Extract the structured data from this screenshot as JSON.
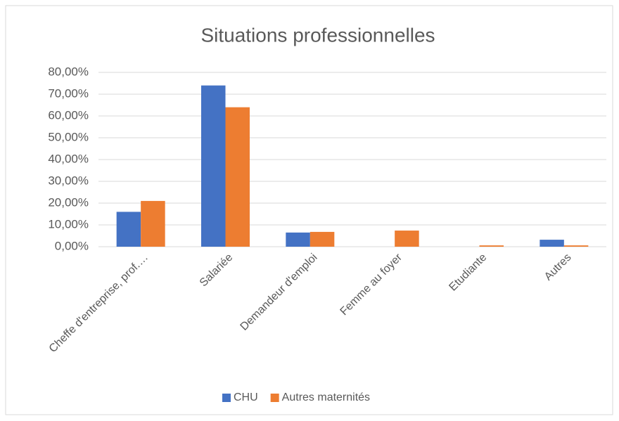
{
  "chart_data": {
    "type": "bar",
    "title": "Situations professionnelles",
    "categories": [
      "Cheffe d'entreprise, prof.…",
      "Salariée",
      "Demandeur d'emploi",
      "Femme au foyer",
      "Etudiante",
      "Autres"
    ],
    "series": [
      {
        "name": "CHU",
        "color": "#4472c4",
        "values": [
          16,
          74,
          6.5,
          0,
          0,
          3.2
        ]
      },
      {
        "name": "Autres maternités",
        "color": "#ed7d31",
        "values": [
          21,
          64,
          6.8,
          7.4,
          0.6,
          0.6
        ]
      }
    ],
    "ylim": [
      0,
      80
    ],
    "yticks": [
      {
        "value": 0,
        "label": "0,00%"
      },
      {
        "value": 10,
        "label": "10,00%"
      },
      {
        "value": 20,
        "label": "20,00%"
      },
      {
        "value": 30,
        "label": "30,00%"
      },
      {
        "value": 40,
        "label": "40,00%"
      },
      {
        "value": 50,
        "label": "50,00%"
      },
      {
        "value": 60,
        "label": "60,00%"
      },
      {
        "value": 70,
        "label": "70,00%"
      },
      {
        "value": 80,
        "label": "80,00%"
      }
    ],
    "grid": true,
    "legend": "bottom"
  }
}
